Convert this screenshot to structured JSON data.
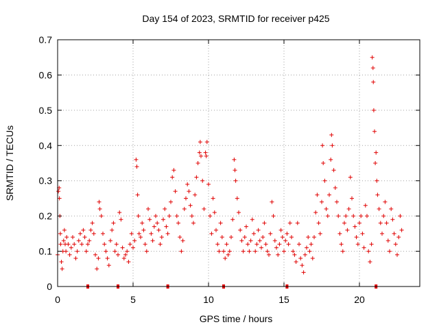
{
  "chart_data": {
    "type": "scatter",
    "title": "Day 154 of 2023, SRMTID for receiver p425",
    "xlabel": "GPS time / hours",
    "ylabel": "SRMTID / TECUs",
    "xlim": [
      0,
      24
    ],
    "ylim": [
      0,
      0.7
    ],
    "x_ticks": [
      0,
      5,
      10,
      15,
      20
    ],
    "x_tick_labels": [
      "0",
      "5",
      "10",
      "15",
      "20"
    ],
    "y_ticks": [
      0,
      0.1,
      0.2,
      0.3,
      0.4,
      0.5,
      0.6,
      0.7
    ],
    "y_tick_labels": [
      "0",
      "0.1",
      "0.2",
      "0.3",
      "0.4",
      "0.5",
      "0.6",
      "0.7"
    ],
    "grid": true,
    "marker": "plus",
    "color": "#e00000",
    "series": [
      {
        "name": "SRMTID",
        "points": [
          [
            0.0,
            0.09
          ],
          [
            0.05,
            0.27
          ],
          [
            0.1,
            0.28
          ],
          [
            0.12,
            0.25
          ],
          [
            0.15,
            0.2
          ],
          [
            0.18,
            0.15
          ],
          [
            0.2,
            0.12
          ],
          [
            0.25,
            0.07
          ],
          [
            0.3,
            0.05
          ],
          [
            0.35,
            0.1
          ],
          [
            0.4,
            0.13
          ],
          [
            0.45,
            0.16
          ],
          [
            0.5,
            0.12
          ],
          [
            0.55,
            0.1
          ],
          [
            0.6,
            0.14
          ],
          [
            0.7,
            0.12
          ],
          [
            0.8,
            0.09
          ],
          [
            0.9,
            0.11
          ],
          [
            1.0,
            0.14
          ],
          [
            1.1,
            0.12
          ],
          [
            1.2,
            0.08
          ],
          [
            1.3,
            0.1
          ],
          [
            1.4,
            0.13
          ],
          [
            1.5,
            0.15
          ],
          [
            1.6,
            0.12
          ],
          [
            1.7,
            0.16
          ],
          [
            1.8,
            0.14
          ],
          [
            1.9,
            0.1
          ],
          [
            2.0,
            0.12
          ],
          [
            2.1,
            0.13
          ],
          [
            2.2,
            0.16
          ],
          [
            2.3,
            0.18
          ],
          [
            2.4,
            0.15
          ],
          [
            2.5,
            0.09
          ],
          [
            2.6,
            0.05
          ],
          [
            2.7,
            0.08
          ],
          [
            2.75,
            0.24
          ],
          [
            2.8,
            0.22
          ],
          [
            2.9,
            0.2
          ],
          [
            3.0,
            0.15
          ],
          [
            3.1,
            0.12
          ],
          [
            3.2,
            0.1
          ],
          [
            3.3,
            0.08
          ],
          [
            3.4,
            0.06
          ],
          [
            3.5,
            0.13
          ],
          [
            3.6,
            0.16
          ],
          [
            3.7,
            0.18
          ],
          [
            3.8,
            0.1
          ],
          [
            3.9,
            0.12
          ],
          [
            4.0,
            0.09
          ],
          [
            4.1,
            0.21
          ],
          [
            4.2,
            0.19
          ],
          [
            4.3,
            0.11
          ],
          [
            4.4,
            0.08
          ],
          [
            4.5,
            0.09
          ],
          [
            4.6,
            0.1
          ],
          [
            4.7,
            0.07
          ],
          [
            4.8,
            0.12
          ],
          [
            4.9,
            0.15
          ],
          [
            5.0,
            0.11
          ],
          [
            5.1,
            0.13
          ],
          [
            5.2,
            0.36
          ],
          [
            5.25,
            0.34
          ],
          [
            5.3,
            0.26
          ],
          [
            5.35,
            0.2
          ],
          [
            5.4,
            0.15
          ],
          [
            5.5,
            0.14
          ],
          [
            5.6,
            0.18
          ],
          [
            5.7,
            0.16
          ],
          [
            5.8,
            0.12
          ],
          [
            5.9,
            0.1
          ],
          [
            6.0,
            0.22
          ],
          [
            6.1,
            0.19
          ],
          [
            6.2,
            0.15
          ],
          [
            6.3,
            0.13
          ],
          [
            6.4,
            0.17
          ],
          [
            6.5,
            0.2
          ],
          [
            6.6,
            0.18
          ],
          [
            6.7,
            0.16
          ],
          [
            6.8,
            0.12
          ],
          [
            6.9,
            0.14
          ],
          [
            7.0,
            0.19
          ],
          [
            7.1,
            0.22
          ],
          [
            7.2,
            0.17
          ],
          [
            7.3,
            0.15
          ],
          [
            7.4,
            0.2
          ],
          [
            7.5,
            0.24
          ],
          [
            7.6,
            0.31
          ],
          [
            7.7,
            0.33
          ],
          [
            7.8,
            0.27
          ],
          [
            7.9,
            0.2
          ],
          [
            8.0,
            0.18
          ],
          [
            8.1,
            0.14
          ],
          [
            8.2,
            0.1
          ],
          [
            8.3,
            0.13
          ],
          [
            8.4,
            0.22
          ],
          [
            8.5,
            0.25
          ],
          [
            8.6,
            0.29
          ],
          [
            8.7,
            0.27
          ],
          [
            8.8,
            0.23
          ],
          [
            8.9,
            0.2
          ],
          [
            9.0,
            0.18
          ],
          [
            9.1,
            0.26
          ],
          [
            9.2,
            0.31
          ],
          [
            9.3,
            0.35
          ],
          [
            9.4,
            0.38
          ],
          [
            9.45,
            0.41
          ],
          [
            9.5,
            0.37
          ],
          [
            9.6,
            0.3
          ],
          [
            9.7,
            0.22
          ],
          [
            9.8,
            0.38
          ],
          [
            9.85,
            0.37
          ],
          [
            9.9,
            0.41
          ],
          [
            10.0,
            0.29
          ],
          [
            10.1,
            0.2
          ],
          [
            10.2,
            0.15
          ],
          [
            10.3,
            0.25
          ],
          [
            10.4,
            0.21
          ],
          [
            10.5,
            0.16
          ],
          [
            10.6,
            0.12
          ],
          [
            10.7,
            0.1
          ],
          [
            10.8,
            0.18
          ],
          [
            10.9,
            0.14
          ],
          [
            11.0,
            0.1
          ],
          [
            11.1,
            0.08
          ],
          [
            11.2,
            0.12
          ],
          [
            11.3,
            0.09
          ],
          [
            11.4,
            0.1
          ],
          [
            11.5,
            0.14
          ],
          [
            11.6,
            0.19
          ],
          [
            11.7,
            0.36
          ],
          [
            11.75,
            0.33
          ],
          [
            11.8,
            0.3
          ],
          [
            11.9,
            0.25
          ],
          [
            12.0,
            0.21
          ],
          [
            12.1,
            0.16
          ],
          [
            12.2,
            0.13
          ],
          [
            12.3,
            0.1
          ],
          [
            12.4,
            0.14
          ],
          [
            12.5,
            0.17
          ],
          [
            12.6,
            0.12
          ],
          [
            12.7,
            0.1
          ],
          [
            12.8,
            0.13
          ],
          [
            12.9,
            0.19
          ],
          [
            13.0,
            0.15
          ],
          [
            13.1,
            0.1
          ],
          [
            13.2,
            0.12
          ],
          [
            13.3,
            0.16
          ],
          [
            13.4,
            0.13
          ],
          [
            13.5,
            0.11
          ],
          [
            13.6,
            0.14
          ],
          [
            13.7,
            0.18
          ],
          [
            13.8,
            0.12
          ],
          [
            13.9,
            0.1
          ],
          [
            14.0,
            0.09
          ],
          [
            14.1,
            0.15
          ],
          [
            14.2,
            0.24
          ],
          [
            14.3,
            0.2
          ],
          [
            14.4,
            0.13
          ],
          [
            14.5,
            0.11
          ],
          [
            14.6,
            0.09
          ],
          [
            14.7,
            0.12
          ],
          [
            14.8,
            0.16
          ],
          [
            14.9,
            0.14
          ],
          [
            15.0,
            0.1
          ],
          [
            15.1,
            0.13
          ],
          [
            15.2,
            0.15
          ],
          [
            15.3,
            0.12
          ],
          [
            15.4,
            0.18
          ],
          [
            15.5,
            0.14
          ],
          [
            15.6,
            0.1
          ],
          [
            15.7,
            0.09
          ],
          [
            15.8,
            0.07
          ],
          [
            15.9,
            0.18
          ],
          [
            16.0,
            0.12
          ],
          [
            16.1,
            0.08
          ],
          [
            16.2,
            0.06
          ],
          [
            16.3,
            0.04
          ],
          [
            16.4,
            0.09
          ],
          [
            16.5,
            0.11
          ],
          [
            16.6,
            0.14
          ],
          [
            16.7,
            0.1
          ],
          [
            16.8,
            0.12
          ],
          [
            16.9,
            0.08
          ],
          [
            17.0,
            0.14
          ],
          [
            17.1,
            0.21
          ],
          [
            17.2,
            0.26
          ],
          [
            17.3,
            0.18
          ],
          [
            17.4,
            0.15
          ],
          [
            17.5,
            0.24
          ],
          [
            17.55,
            0.4
          ],
          [
            17.6,
            0.35
          ],
          [
            17.7,
            0.3
          ],
          [
            17.8,
            0.22
          ],
          [
            17.9,
            0.2
          ],
          [
            18.0,
            0.26
          ],
          [
            18.1,
            0.36
          ],
          [
            18.15,
            0.43
          ],
          [
            18.2,
            0.4
          ],
          [
            18.3,
            0.33
          ],
          [
            18.4,
            0.28
          ],
          [
            18.5,
            0.24
          ],
          [
            18.6,
            0.2
          ],
          [
            18.7,
            0.15
          ],
          [
            18.8,
            0.12
          ],
          [
            18.9,
            0.1
          ],
          [
            19.0,
            0.18
          ],
          [
            19.1,
            0.2
          ],
          [
            19.2,
            0.16
          ],
          [
            19.3,
            0.22
          ],
          [
            19.4,
            0.31
          ],
          [
            19.5,
            0.25
          ],
          [
            19.6,
            0.2
          ],
          [
            19.7,
            0.17
          ],
          [
            19.8,
            0.14
          ],
          [
            19.9,
            0.12
          ],
          [
            20.0,
            0.18
          ],
          [
            20.1,
            0.2
          ],
          [
            20.2,
            0.15
          ],
          [
            20.3,
            0.11
          ],
          [
            20.4,
            0.23
          ],
          [
            20.5,
            0.2
          ],
          [
            20.6,
            0.1
          ],
          [
            20.7,
            0.07
          ],
          [
            20.8,
            0.12
          ],
          [
            20.85,
            0.65
          ],
          [
            20.9,
            0.62
          ],
          [
            20.92,
            0.58
          ],
          [
            20.95,
            0.5
          ],
          [
            21.0,
            0.44
          ],
          [
            21.05,
            0.35
          ],
          [
            21.1,
            0.38
          ],
          [
            21.15,
            0.3
          ],
          [
            21.2,
            0.26
          ],
          [
            21.3,
            0.22
          ],
          [
            21.4,
            0.18
          ],
          [
            21.5,
            0.15
          ],
          [
            21.6,
            0.2
          ],
          [
            21.7,
            0.24
          ],
          [
            21.8,
            0.18
          ],
          [
            21.9,
            0.13
          ],
          [
            22.0,
            0.1
          ],
          [
            22.1,
            0.22
          ],
          [
            22.2,
            0.19
          ],
          [
            22.3,
            0.15
          ],
          [
            22.4,
            0.12
          ],
          [
            22.5,
            0.09
          ],
          [
            22.6,
            0.14
          ],
          [
            22.7,
            0.2
          ],
          [
            22.8,
            0.16
          ]
        ]
      }
    ],
    "axis_marks_x": [
      2.0,
      4.0,
      7.3,
      11.0,
      15.2,
      21.1
    ]
  }
}
